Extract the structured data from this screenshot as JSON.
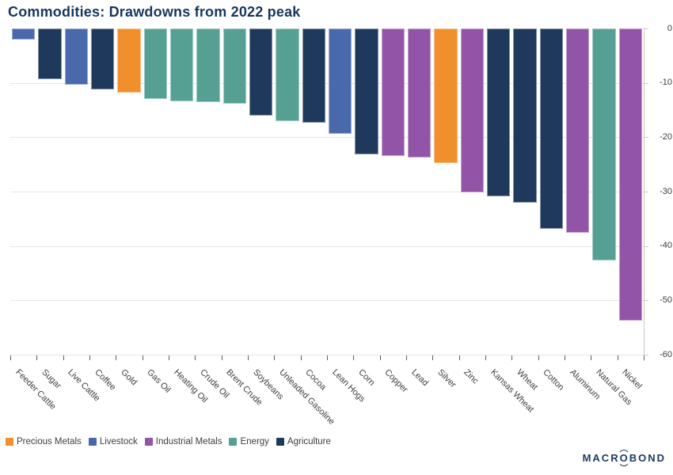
{
  "header": {
    "title": "Commodities: Drawdowns from 2022 peak"
  },
  "chart_data": {
    "type": "bar",
    "title": "Commodities: Drawdowns from 2022 peak",
    "orientation": "vertical",
    "ylim": [
      -60,
      0
    ],
    "yticks": [
      0,
      -10,
      -20,
      -30,
      -40,
      -50,
      -60
    ],
    "grid": true,
    "y_axis_side": "right",
    "legend_position": "bottom",
    "groups": [
      {
        "name": "Precious Metals",
        "color": "#F18F2C"
      },
      {
        "name": "Livestock",
        "color": "#4A69AB"
      },
      {
        "name": "Industrial Metals",
        "color": "#9254A6"
      },
      {
        "name": "Energy",
        "color": "#55A093"
      },
      {
        "name": "Agriculture",
        "color": "#1E395C"
      }
    ],
    "bars": [
      {
        "label": "Feeder Cattle",
        "group": "Livestock",
        "value": -2.0
      },
      {
        "label": "Sugar",
        "group": "Agriculture",
        "value": -9.3
      },
      {
        "label": "Live Cattle",
        "group": "Livestock",
        "value": -10.3
      },
      {
        "label": "Coffee",
        "group": "Agriculture",
        "value": -11.2
      },
      {
        "label": "Gold",
        "group": "Precious Metals",
        "value": -11.8
      },
      {
        "label": "Gas Oil",
        "group": "Energy",
        "value": -12.9
      },
      {
        "label": "Heating Oil",
        "group": "Energy",
        "value": -13.4
      },
      {
        "label": "Crude Oil",
        "group": "Energy",
        "value": -13.5
      },
      {
        "label": "Brent Crude",
        "group": "Energy",
        "value": -13.8
      },
      {
        "label": "Soybeans",
        "group": "Agriculture",
        "value": -16.0
      },
      {
        "label": "Unleaded Gasoline",
        "group": "Energy",
        "value": -17.1
      },
      {
        "label": "Cocoa",
        "group": "Agriculture",
        "value": -17.4
      },
      {
        "label": "Lean Hogs",
        "group": "Livestock",
        "value": -19.4
      },
      {
        "label": "Corn",
        "group": "Agriculture",
        "value": -23.2
      },
      {
        "label": "Copper",
        "group": "Industrial Metals",
        "value": -23.4
      },
      {
        "label": "Lead",
        "group": "Industrial Metals",
        "value": -23.8
      },
      {
        "label": "Silver",
        "group": "Precious Metals",
        "value": -24.8
      },
      {
        "label": "Zinc",
        "group": "Industrial Metals",
        "value": -30.1
      },
      {
        "label": "Kansas Wheat",
        "group": "Agriculture",
        "value": -30.9
      },
      {
        "label": "Wheat",
        "group": "Agriculture",
        "value": -32.1
      },
      {
        "label": "Cotton",
        "group": "Agriculture",
        "value": -36.8
      },
      {
        "label": "Aluminum",
        "group": "Industrial Metals",
        "value": -37.5
      },
      {
        "label": "Natural Gas",
        "group": "Energy",
        "value": -42.6
      },
      {
        "label": "Nickel",
        "group": "Industrial Metals",
        "value": -53.8
      }
    ]
  },
  "legend": {
    "items": [
      "Precious Metals",
      "Livestock",
      "Industrial Metals",
      "Energy",
      "Agriculture"
    ]
  },
  "branding": {
    "logo_pre": "MACR",
    "logo_o": "O",
    "logo_post": "BOND"
  }
}
